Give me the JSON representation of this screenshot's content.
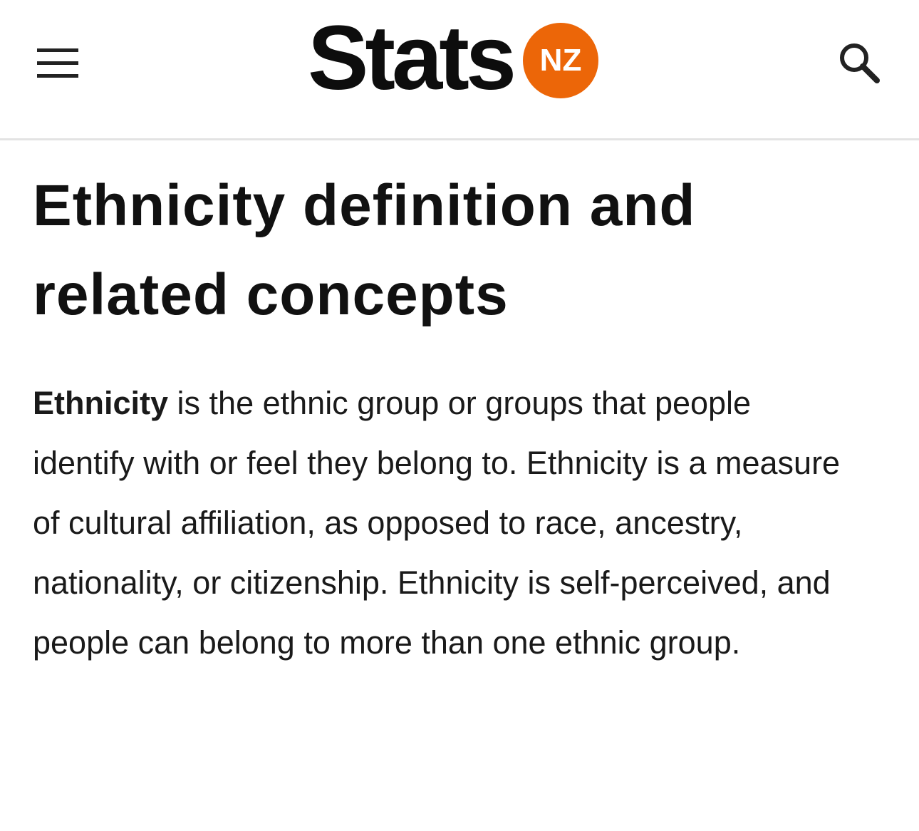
{
  "header": {
    "logo_text": "Stats",
    "logo_badge": "NZ"
  },
  "article": {
    "title": "Ethnicity definition and related concepts",
    "paragraph": {
      "term": "Ethnicity",
      "text": "is the ethnic group or groups that people identify with or feel they belong to. Ethnicity is a measure of cultural affiliation, as opposed to race, ancestry, nationality, or citizenship. Ethnicity is self-perceived, and people can belong to more than one ethnic group."
    }
  }
}
